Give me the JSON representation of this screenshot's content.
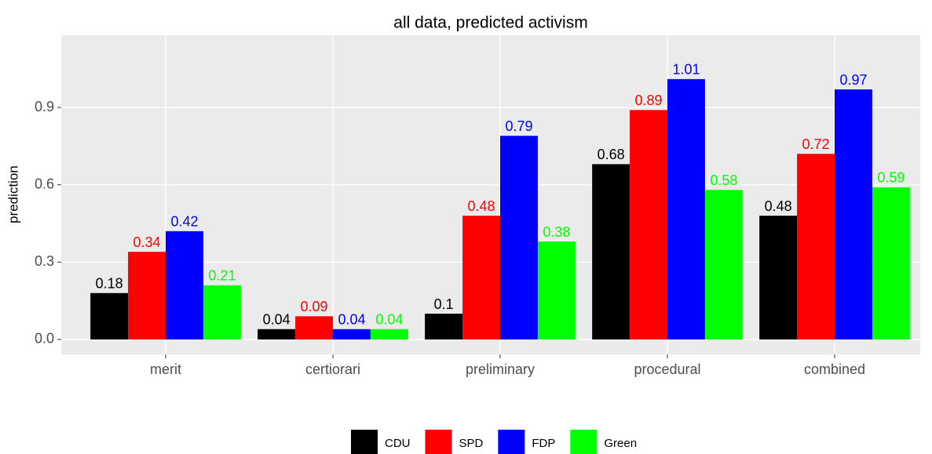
{
  "chart_data": {
    "type": "bar",
    "title": "all data, predicted activism",
    "y_label": "prediction",
    "categories": [
      "merit",
      "certiorari",
      "preliminary",
      "procedural",
      "combined"
    ],
    "series": [
      {
        "name": "CDU",
        "color": "#000000",
        "values": [
          0.18,
          0.04,
          0.1,
          0.68,
          0.48
        ]
      },
      {
        "name": "SPD",
        "color": "#ff0000",
        "values": [
          0.34,
          0.09,
          0.48,
          0.89,
          0.72
        ]
      },
      {
        "name": "FDP",
        "color": "#0000ff",
        "values": [
          0.42,
          0.04,
          0.79,
          1.01,
          0.97
        ]
      },
      {
        "name": "Green",
        "color": "#00ff00",
        "values": [
          0.21,
          0.04,
          0.38,
          0.58,
          0.59
        ]
      }
    ],
    "ylim": [
      -0.058,
      1.18
    ],
    "yticks": [
      {
        "value": 0,
        "label": "0.0"
      },
      0.3,
      0.6,
      0.9
    ],
    "grid": true,
    "legend": "bottom"
  }
}
